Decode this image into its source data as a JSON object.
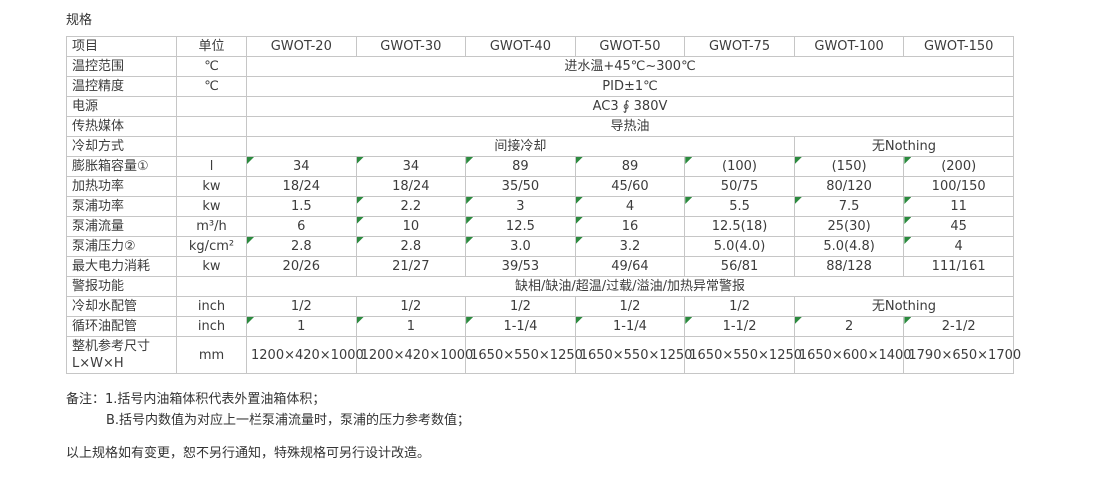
{
  "page": {
    "title": "规格"
  },
  "colors": {
    "flag_green": "#2b8a3e",
    "border_gray": "#c6c6c6",
    "text": "#3c3c3c"
  },
  "table": {
    "header": {
      "item_label": "项目",
      "unit_label": "单位",
      "models": [
        "GWOT-20",
        "GWOT-30",
        "GWOT-40",
        "GWOT-50",
        "GWOT-75",
        "GWOT-100",
        "GWOT-150"
      ]
    },
    "rows": [
      {
        "label": "温控范围",
        "unit": "℃",
        "cells": [
          {
            "text": "进水温+45℃~300℃",
            "span": 7
          }
        ]
      },
      {
        "label": "温控精度",
        "unit": "℃",
        "cells": [
          {
            "text": "PID±1℃",
            "span": 7
          }
        ]
      },
      {
        "label": "电源",
        "unit": "",
        "cells": [
          {
            "text": "AC3 ∮ 380V",
            "span": 7
          }
        ]
      },
      {
        "label": "传热媒体",
        "unit": "",
        "cells": [
          {
            "text": "导热油",
            "span": 7
          }
        ]
      },
      {
        "label": "冷却方式",
        "unit": "",
        "cells": [
          {
            "text": "间接冷却",
            "span": 5
          },
          {
            "text": "无Nothing",
            "span": 2
          }
        ]
      },
      {
        "label": "膨胀箱容量①",
        "unit": "l",
        "cells": [
          {
            "text": "34",
            "flag": true
          },
          {
            "text": "34",
            "flag": true
          },
          {
            "text": "89",
            "flag": true
          },
          {
            "text": "89",
            "flag": true
          },
          {
            "text": "(100)",
            "flag": true
          },
          {
            "text": "(150)",
            "flag": true
          },
          {
            "text": "(200)",
            "flag": true
          }
        ]
      },
      {
        "label": "加热功率",
        "unit": "kw",
        "cells": [
          {
            "text": "18/24"
          },
          {
            "text": "18/24"
          },
          {
            "text": "35/50"
          },
          {
            "text": "45/60"
          },
          {
            "text": "50/75"
          },
          {
            "text": "80/120"
          },
          {
            "text": "100/150"
          }
        ]
      },
      {
        "label": "泵浦功率",
        "unit": "kw",
        "cells": [
          {
            "text": "1.5"
          },
          {
            "text": "2.2",
            "flag": true
          },
          {
            "text": "3",
            "flag": true
          },
          {
            "text": "4",
            "flag": true
          },
          {
            "text": "5.5",
            "flag": true
          },
          {
            "text": "7.5",
            "flag": true
          },
          {
            "text": "11",
            "flag": true
          }
        ]
      },
      {
        "label": "泵浦流量",
        "unit": "m³/h",
        "cells": [
          {
            "text": "6"
          },
          {
            "text": "10",
            "flag": true
          },
          {
            "text": "12.5",
            "flag": true
          },
          {
            "text": "16",
            "flag": true
          },
          {
            "text": "12.5(18)"
          },
          {
            "text": "25(30)"
          },
          {
            "text": "45",
            "flag": true
          }
        ]
      },
      {
        "label": "泵浦压力②",
        "unit": "kg/cm²",
        "cells": [
          {
            "text": "2.8",
            "flag": true
          },
          {
            "text": "2.8",
            "flag": true
          },
          {
            "text": "3.0",
            "flag": true
          },
          {
            "text": "3.2",
            "flag": true
          },
          {
            "text": "5.0(4.0)"
          },
          {
            "text": "5.0(4.8)"
          },
          {
            "text": "4",
            "flag": true
          }
        ]
      },
      {
        "label": "最大电力消耗",
        "unit": "kw",
        "cells": [
          {
            "text": "20/26"
          },
          {
            "text": "21/27"
          },
          {
            "text": "39/53"
          },
          {
            "text": "49/64"
          },
          {
            "text": "56/81"
          },
          {
            "text": "88/128"
          },
          {
            "text": "111/161"
          }
        ]
      },
      {
        "label": "警报功能",
        "unit": "",
        "cells": [
          {
            "text": "缺相/缺油/超温/过载/溢油/加热异常警报",
            "span": 7
          }
        ]
      },
      {
        "label": "冷却水配管",
        "unit": "inch",
        "cells": [
          {
            "text": "1/2"
          },
          {
            "text": "1/2"
          },
          {
            "text": "1/2"
          },
          {
            "text": "1/2"
          },
          {
            "text": "1/2"
          },
          {
            "text": "无Nothing",
            "span": 2
          }
        ]
      },
      {
        "label": "循环油配管",
        "unit": "inch",
        "cells": [
          {
            "text": "1",
            "flag": true
          },
          {
            "text": "1",
            "flag": true
          },
          {
            "text": "1-1/4",
            "flag": true
          },
          {
            "text": "1-1/4",
            "flag": true
          },
          {
            "text": "1-1/2",
            "flag": true
          },
          {
            "text": "2",
            "flag": true
          },
          {
            "text": "2-1/2",
            "flag": true
          }
        ]
      },
      {
        "label": "整机参考尺寸",
        "label2": "L×W×H",
        "unit": "mm",
        "cells": [
          {
            "text": "1200×420×1000"
          },
          {
            "text": "1200×420×1000"
          },
          {
            "text": "1650×550×1250"
          },
          {
            "text": "1650×550×1250"
          },
          {
            "text": "1650×550×1250"
          },
          {
            "text": "1650×600×1400"
          },
          {
            "text": "1790×650×1700"
          }
        ]
      }
    ]
  },
  "notes": {
    "remark_label": "备注：",
    "line1": "1.括号内油箱体积代表外置油箱体积；",
    "line2": "B.括号内数值为对应上一栏泵浦流量时，泵浦的压力参考数值；",
    "footer": "以上规格如有变更，恕不另行通知，特殊规格可另行设计改造。"
  }
}
